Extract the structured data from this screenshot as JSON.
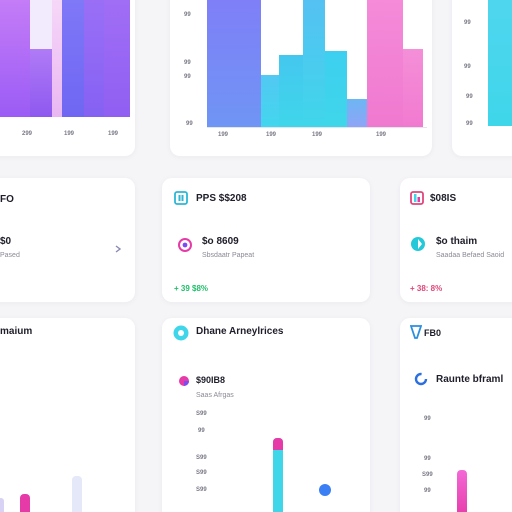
{
  "colors": {
    "purple": "#9b5cf5",
    "violet": "#7b6cf6",
    "cyan": "#3fd6ea",
    "pink": "#f26fd0",
    "magenta": "#e63aa8",
    "green": "#1fbf6a",
    "red": "#e0457b"
  },
  "top_left_chart": {
    "x_ticks": [
      "299",
      "199",
      "199"
    ]
  },
  "top_mid_chart": {
    "y_ticks": [
      "99",
      "99",
      "99",
      "99"
    ],
    "x_ticks": [
      "199",
      "199",
      "199",
      "199"
    ]
  },
  "top_right_chart": {
    "y_ticks": [
      "99",
      "99",
      "99",
      "99"
    ]
  },
  "metric_left": {
    "title": "FO",
    "value": "$0",
    "subtitle": "Pased"
  },
  "metric_mid": {
    "title": "PPS $$208",
    "value": "$o 8609",
    "subtitle": "Sbsdaatr Papeat",
    "delta": "+ 39 $8%"
  },
  "metric_right": {
    "title": "$08IS",
    "value": "$o thaim",
    "subtitle": "Saadaa Befaed Saoid",
    "delta": "+ 38: 8%"
  },
  "bottom_left": {
    "title": "maium"
  },
  "bottom_mid": {
    "title": "Dhane Arneylrices",
    "value": "$90IB8",
    "subtitle": "Saas Afrgas",
    "y_ticks": [
      "S99",
      "99",
      "S99",
      "S99",
      "S99"
    ]
  },
  "bottom_right": {
    "title": "FB0",
    "value": "Raunte bframl",
    "y_ticks": [
      "99",
      "99",
      "S99",
      "99"
    ]
  }
}
